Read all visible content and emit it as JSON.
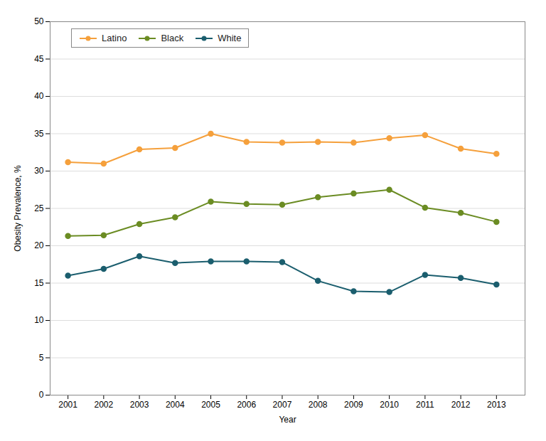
{
  "chart_data": {
    "type": "line",
    "x": [
      2001,
      2002,
      2003,
      2004,
      2005,
      2006,
      2007,
      2008,
      2009,
      2010,
      2011,
      2012,
      2013
    ],
    "series": [
      {
        "name": "Latino",
        "color": "#F5A03C",
        "marker": "circle",
        "values": [
          31.2,
          31.0,
          32.9,
          33.1,
          35.0,
          33.9,
          33.8,
          33.9,
          33.8,
          34.4,
          34.8,
          33.0,
          32.3
        ]
      },
      {
        "name": "Black",
        "color": "#6B8C23",
        "marker": "circle",
        "values": [
          21.3,
          21.4,
          22.9,
          23.8,
          25.9,
          25.6,
          25.5,
          26.5,
          27.0,
          27.5,
          25.1,
          24.4,
          23.2
        ]
      },
      {
        "name": "White",
        "color": "#1B5E6E",
        "marker": "circle",
        "values": [
          16.0,
          16.9,
          18.6,
          17.7,
          17.9,
          17.9,
          17.8,
          15.3,
          13.9,
          13.8,
          16.1,
          15.7,
          14.8
        ]
      }
    ],
    "xlabel": "Year",
    "ylabel": "Obesity Prevalence, %",
    "xlim": [
      2000.5,
      2013.8
    ],
    "xticks": [
      2001,
      2002,
      2003,
      2004,
      2005,
      2006,
      2007,
      2008,
      2009,
      2010,
      2011,
      2012,
      2013
    ],
    "ylim": [
      0,
      50
    ],
    "yticks": [
      0,
      5,
      10,
      15,
      20,
      25,
      30,
      35,
      40,
      45,
      50
    ],
    "grid": "y",
    "legend": "upper left"
  }
}
